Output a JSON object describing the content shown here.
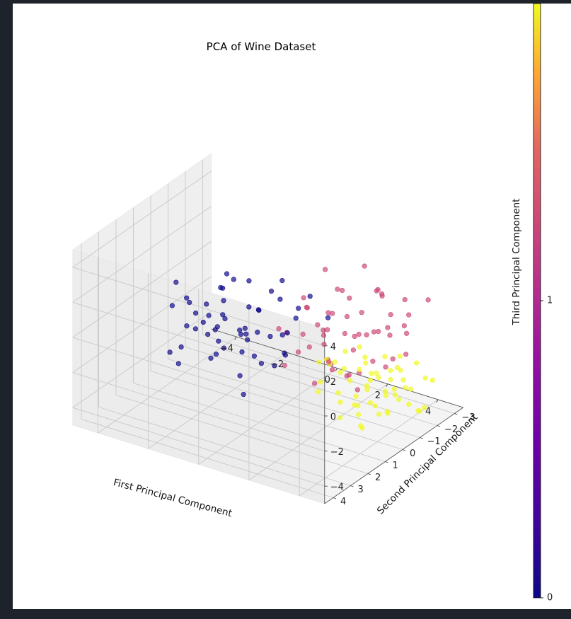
{
  "chart_data": {
    "type": "scatter",
    "projection": "3d",
    "title": "PCA of Wine Dataset",
    "xlabel": "First Principal Component",
    "ylabel": "Second Principal Component",
    "zlabel": "Third Principal Component",
    "xlim": [
      -5,
      5
    ],
    "ylim": [
      -3.5,
      4.5
    ],
    "zlim": [
      -5,
      5
    ],
    "xticks": [
      -4,
      -2,
      0,
      2,
      4
    ],
    "yticks": [
      -3,
      -2,
      -1,
      0,
      1,
      2,
      3,
      4
    ],
    "zticks": [
      -4,
      -2,
      0,
      2,
      4
    ],
    "grid": true,
    "colormap": "plasma",
    "colorbar": {
      "ticks": [
        0,
        1
      ]
    },
    "class_colors": [
      "#0d0887",
      "#cc4778",
      "#f0f921"
    ],
    "series": [
      {
        "class": 0,
        "points": [
          [
            -3.6,
            -0.2,
            -0.6
          ],
          [
            -3.3,
            0.4,
            0.2
          ],
          [
            -3.1,
            1.3,
            1.8
          ],
          [
            -2.9,
            -1.1,
            -1.6
          ],
          [
            -2.8,
            0.6,
            -0.3
          ],
          [
            -2.7,
            2.1,
            1.2
          ],
          [
            -2.6,
            0.9,
            -0.9
          ],
          [
            -2.5,
            -0.4,
            0.6
          ],
          [
            -2.4,
            1.7,
            -0.1
          ],
          [
            -2.3,
            0.2,
            -1.3
          ],
          [
            -2.2,
            -1.6,
            0.3
          ],
          [
            -2.1,
            1.0,
            0.8
          ],
          [
            -2.0,
            2.6,
            -0.5
          ],
          [
            -1.9,
            -0.7,
            -2.0
          ],
          [
            -1.8,
            0.5,
            1.5
          ],
          [
            -1.7,
            1.5,
            -0.4
          ],
          [
            -1.6,
            -1.3,
            -0.9
          ],
          [
            -1.5,
            0.8,
            0.1
          ],
          [
            -1.4,
            2.2,
            0.9
          ],
          [
            -1.3,
            -0.2,
            -1.7
          ],
          [
            -1.2,
            1.3,
            -1.1
          ],
          [
            -1.1,
            0.0,
            0.4
          ],
          [
            -1.0,
            1.9,
            -0.2
          ],
          [
            -0.9,
            -1.0,
            0.7
          ],
          [
            -0.8,
            0.6,
            -0.6
          ],
          [
            -0.7,
            2.4,
            1.1
          ],
          [
            -0.6,
            -0.5,
            -1.4
          ],
          [
            -0.5,
            1.1,
            0.2
          ],
          [
            -0.4,
            0.3,
            -2.3
          ],
          [
            -0.3,
            1.7,
            0.6
          ],
          [
            -0.2,
            -1.4,
            -0.8
          ],
          [
            -0.1,
            0.9,
            1.3
          ],
          [
            0.0,
            2.0,
            -0.3
          ],
          [
            0.1,
            -0.3,
            -1.9
          ],
          [
            0.2,
            1.4,
            0.5
          ],
          [
            0.3,
            0.1,
            -0.5
          ],
          [
            0.4,
            2.7,
            -1.0
          ],
          [
            0.5,
            -1.2,
            0.9
          ],
          [
            0.6,
            1.0,
            -1.5
          ],
          [
            0.7,
            0.4,
            0.0
          ],
          [
            -1.9,
            2.9,
            -1.2
          ],
          [
            -2.6,
            -0.9,
            1.0
          ],
          [
            -1.1,
            -1.8,
            -0.4
          ],
          [
            0.9,
            0.8,
            -0.9
          ],
          [
            -0.4,
            -0.9,
            1.6
          ],
          [
            -3.0,
            1.8,
            -1.8
          ],
          [
            -1.5,
            0.3,
            2.0
          ],
          [
            0.2,
            2.2,
            -2.5
          ],
          [
            -2.2,
            0.6,
            -2.6
          ],
          [
            -0.8,
            1.9,
            2.2
          ],
          [
            0.8,
            -1.8,
            -0.6
          ],
          [
            -1.3,
            -0.6,
            -2.9
          ],
          [
            1.0,
            0.2,
            1.4
          ],
          [
            -0.2,
            3.2,
            0.3
          ],
          [
            -2.9,
            -0.3,
            -1.1
          ]
        ]
      },
      {
        "class": 1,
        "points": [
          [
            0.2,
            -1.6,
            -2.4
          ],
          [
            0.9,
            -2.2,
            0.8
          ],
          [
            1.3,
            -0.8,
            -0.4
          ],
          [
            1.6,
            0.6,
            2.0
          ],
          [
            1.9,
            -1.3,
            0.3
          ],
          [
            2.1,
            0.1,
            -1.1
          ],
          [
            2.3,
            -2.5,
            1.2
          ],
          [
            2.5,
            0.9,
            0.5
          ],
          [
            2.7,
            -0.5,
            -0.7
          ],
          [
            2.9,
            1.5,
            1.6
          ],
          [
            3.1,
            -1.9,
            -0.2
          ],
          [
            3.3,
            0.3,
            0.9
          ],
          [
            3.5,
            -1.0,
            2.4
          ],
          [
            3.7,
            1.2,
            -0.5
          ],
          [
            3.9,
            -0.2,
            1.1
          ],
          [
            4.1,
            -1.5,
            -1.0
          ],
          [
            4.3,
            0.7,
            0.2
          ],
          [
            1.0,
            -0.1,
            1.8
          ],
          [
            1.4,
            -1.9,
            -1.3
          ],
          [
            1.8,
            1.1,
            0.9
          ],
          [
            2.2,
            -1.0,
            1.7
          ],
          [
            2.6,
            -2.8,
            -0.3
          ],
          [
            3.0,
            -0.4,
            -1.8
          ],
          [
            3.4,
            1.8,
            0.4
          ],
          [
            3.8,
            -2.1,
            0.7
          ],
          [
            4.2,
            -0.6,
            -0.6
          ],
          [
            0.6,
            -0.9,
            0.5
          ],
          [
            1.2,
            0.5,
            -0.8
          ],
          [
            1.7,
            -2.6,
            2.2
          ],
          [
            2.4,
            1.3,
            -1.5
          ],
          [
            2.8,
            -1.7,
            1.9
          ],
          [
            3.2,
            0.6,
            -1.2
          ],
          [
            3.6,
            -1.3,
            0.0
          ],
          [
            4.0,
            0.2,
            1.4
          ],
          [
            0.4,
            -2.4,
            -0.9
          ],
          [
            1.5,
            1.6,
            1.2
          ],
          [
            2.0,
            -0.3,
            -2.0
          ],
          [
            3.3,
            -2.6,
            1.0
          ],
          [
            4.4,
            -1.1,
            0.6
          ],
          [
            1.1,
            -1.2,
            2.7
          ],
          [
            2.6,
            0.0,
            3.0
          ],
          [
            3.9,
            1.0,
            -1.4
          ],
          [
            0.8,
            0.7,
            -1.6
          ],
          [
            2.3,
            -1.4,
            -0.6
          ],
          [
            3.5,
            -0.1,
            0.8
          ],
          [
            1.9,
            0.4,
            1.0
          ],
          [
            3.0,
            -3.0,
            -0.9
          ],
          [
            4.5,
            -2.2,
            1.8
          ],
          [
            1.6,
            -0.6,
            -0.1
          ],
          [
            2.9,
            1.0,
            2.5
          ],
          [
            0.0,
            -3.0,
            -4.3
          ],
          [
            -1.5,
            -2.3,
            -2.6
          ],
          [
            5.0,
            1.2,
            4.7
          ],
          [
            4.6,
            0.4,
            -0.2
          ],
          [
            2.0,
            -2.0,
            0.1
          ]
        ]
      },
      {
        "class": 2,
        "points": [
          [
            0.8,
            -2.8,
            -3.2
          ],
          [
            1.3,
            -2.0,
            -3.4
          ],
          [
            1.7,
            -1.2,
            -2.9
          ],
          [
            2.1,
            -2.4,
            -3.6
          ],
          [
            2.5,
            -0.6,
            -2.6
          ],
          [
            2.8,
            -1.8,
            -3.1
          ],
          [
            3.1,
            -0.9,
            -3.8
          ],
          [
            3.4,
            -2.2,
            -2.7
          ],
          [
            3.7,
            -0.3,
            -3.3
          ],
          [
            4.0,
            -1.5,
            -2.5
          ],
          [
            4.3,
            -0.8,
            -3.0
          ],
          [
            4.6,
            -1.9,
            -2.4
          ],
          [
            4.9,
            -0.5,
            -2.8
          ],
          [
            1.5,
            -2.6,
            -2.5
          ],
          [
            1.9,
            -0.8,
            -3.7
          ],
          [
            2.3,
            -2.9,
            -2.9
          ],
          [
            2.7,
            -1.3,
            -3.5
          ],
          [
            3.0,
            -2.6,
            -3.0
          ],
          [
            3.3,
            -0.4,
            -2.4
          ],
          [
            3.6,
            -1.6,
            -3.6
          ],
          [
            3.9,
            -2.4,
            -2.2
          ],
          [
            4.2,
            0.2,
            -3.2
          ],
          [
            4.5,
            -1.2,
            -2.6
          ],
          [
            1.0,
            -1.6,
            -3.0
          ],
          [
            1.6,
            -0.2,
            -2.8
          ],
          [
            2.2,
            -1.9,
            -2.3
          ],
          [
            2.6,
            0.1,
            -3.3
          ],
          [
            2.9,
            -2.9,
            -2.6
          ],
          [
            3.2,
            -1.1,
            -2.2
          ],
          [
            3.5,
            0.4,
            -2.9
          ],
          [
            3.8,
            -1.9,
            -3.3
          ],
          [
            4.1,
            -0.3,
            -2.3
          ],
          [
            4.4,
            -2.6,
            -3.1
          ],
          [
            4.8,
            0.6,
            -2.5
          ],
          [
            5.0,
            -0.9,
            -3.4
          ],
          [
            2.0,
            -2.5,
            -4.1
          ],
          [
            2.4,
            -1.0,
            -4.3
          ],
          [
            3.1,
            -1.8,
            -4.0
          ],
          [
            3.6,
            0.3,
            -4.2
          ],
          [
            4.7,
            -1.7,
            -3.9
          ],
          [
            0.4,
            -2.3,
            -3.5
          ],
          [
            1.2,
            -0.7,
            -2.2
          ],
          [
            2.0,
            0.5,
            -2.7
          ],
          [
            2.8,
            -0.7,
            -1.9
          ],
          [
            3.7,
            0.8,
            -2.0
          ],
          [
            4.6,
            -0.1,
            -1.8
          ],
          [
            5.1,
            1.0,
            -2.2
          ],
          [
            5.4,
            -0.4,
            -2.9
          ],
          [
            0.1,
            -3.2,
            -4.4
          ],
          [
            3.0,
            0.7,
            -3.6
          ],
          [
            4.0,
            1.1,
            -2.7
          ],
          [
            1.4,
            -3.1,
            -3.8
          ],
          [
            2.6,
            -2.8,
            -4.0
          ],
          [
            3.9,
            -0.9,
            -1.6
          ],
          [
            4.3,
            1.4,
            -3.0
          ]
        ]
      }
    ]
  }
}
